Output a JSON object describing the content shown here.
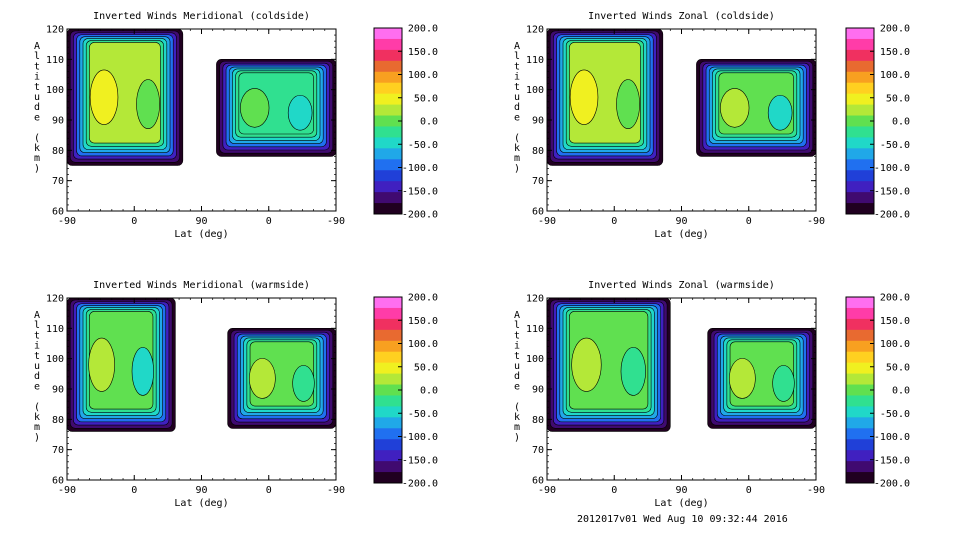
{
  "footer": "2012017v01 Wed Aug 10 09:32:44 2016",
  "colorbar": {
    "ticks": [
      "200.0",
      "150.0",
      "100.0",
      "50.0",
      "0.0",
      "-50.0",
      "-100.0",
      "-150.0",
      "-200.0"
    ],
    "colors": [
      "#ff6ef0",
      "#ff3ca8",
      "#f03060",
      "#e86a30",
      "#f8a020",
      "#ffd020",
      "#f0f020",
      "#b4e838",
      "#60e050",
      "#30e090",
      "#20d8c8",
      "#20a8e8",
      "#2070f0",
      "#2040d8",
      "#4020c0",
      "#400a70",
      "#200020"
    ]
  },
  "chart_data": [
    {
      "type": "heatmap",
      "title": "Inverted Winds Meridional (coldside)",
      "xlabel": "Lat (deg)",
      "ylabel": "Altitude (km)",
      "xticks": [
        "-90",
        "0",
        "90",
        "0",
        "-90"
      ],
      "yticks": [
        "120",
        "110",
        "100",
        "90",
        "80",
        "70",
        "60"
      ],
      "ylim": [
        60,
        120
      ],
      "value_range": [
        -200,
        200
      ],
      "regions": [
        {
          "x": [
            -90,
            65
          ],
          "y": [
            75,
            120
          ],
          "mean_value": 20
        },
        {
          "x": [
            110,
            270
          ],
          "y": [
            78,
            110
          ],
          "mean_value": -20
        }
      ]
    },
    {
      "type": "heatmap",
      "title": "Inverted Winds Zonal (coldside)",
      "xlabel": "Lat (deg)",
      "ylabel": "Altitude (km)",
      "xticks": [
        "-90",
        "0",
        "90",
        "0",
        "-90"
      ],
      "yticks": [
        "120",
        "110",
        "100",
        "90",
        "80",
        "70",
        "60"
      ],
      "ylim": [
        60,
        120
      ],
      "value_range": [
        -200,
        200
      ],
      "regions": [
        {
          "x": [
            -90,
            65
          ],
          "y": [
            75,
            120
          ],
          "mean_value": 25
        },
        {
          "x": [
            110,
            270
          ],
          "y": [
            78,
            110
          ],
          "mean_value": -10
        }
      ]
    },
    {
      "type": "heatmap",
      "title": "Inverted Winds Meridional (warmside)",
      "xlabel": "Lat (deg)",
      "ylabel": "Altitude (km)",
      "xticks": [
        "-90",
        "0",
        "90",
        "0",
        "-90"
      ],
      "yticks": [
        "120",
        "110",
        "100",
        "90",
        "80",
        "70",
        "60"
      ],
      "ylim": [
        60,
        120
      ],
      "value_range": [
        -200,
        200
      ],
      "regions": [
        {
          "x": [
            -90,
            55
          ],
          "y": [
            76,
            120
          ],
          "mean_value": -10
        },
        {
          "x": [
            125,
            270
          ],
          "y": [
            77,
            110
          ],
          "mean_value": 10
        }
      ]
    },
    {
      "type": "heatmap",
      "title": "Inverted Winds Zonal (warmside)",
      "xlabel": "Lat (deg)",
      "ylabel": "Altitude (km)",
      "xticks": [
        "-90",
        "0",
        "90",
        "0",
        "-90"
      ],
      "yticks": [
        "120",
        "110",
        "100",
        "90",
        "80",
        "70",
        "60"
      ],
      "ylim": [
        60,
        120
      ],
      "value_range": [
        -200,
        200
      ],
      "regions": [
        {
          "x": [
            -90,
            75
          ],
          "y": [
            76,
            120
          ],
          "mean_value": 5
        },
        {
          "x": [
            125,
            270
          ],
          "y": [
            77,
            110
          ],
          "mean_value": -5
        }
      ]
    }
  ]
}
